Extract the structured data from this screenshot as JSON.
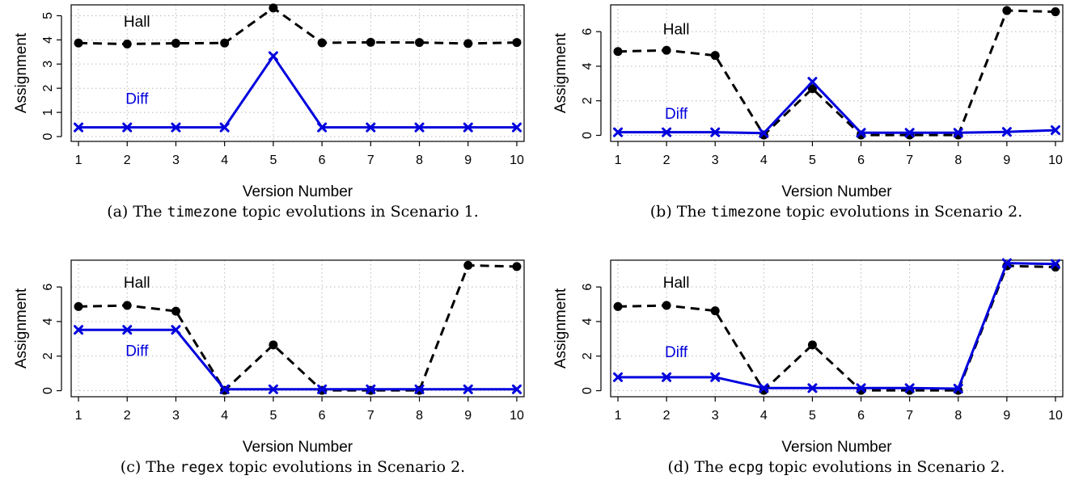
{
  "chart_data": [
    {
      "type": "line",
      "caption": {
        "prefix": "(a) The ",
        "code": "timezone",
        "suffix": " topic evolutions in Scenario 1."
      },
      "xlabel": "Version Number",
      "ylabel": "Assignment",
      "x": [
        1,
        2,
        3,
        4,
        5,
        6,
        7,
        8,
        9,
        10
      ],
      "xlim": [
        0.85,
        10.15
      ],
      "ylim": [
        -0.2,
        5.45
      ],
      "yticks": [
        0,
        1,
        2,
        3,
        4,
        5
      ],
      "grid": true,
      "series": [
        {
          "name": "Hall",
          "color": "#000000",
          "style": "dashed",
          "marker": "circle",
          "values": [
            3.87,
            3.83,
            3.86,
            3.87,
            5.32,
            3.88,
            3.9,
            3.89,
            3.85,
            3.89
          ],
          "label_at": [
            2.2,
            4.55
          ]
        },
        {
          "name": "Diff",
          "color": "#0000dd",
          "style": "solid",
          "marker": "x",
          "values": [
            0.38,
            0.38,
            0.38,
            0.38,
            3.33,
            0.38,
            0.38,
            0.38,
            0.38,
            0.38
          ],
          "label_at": [
            2.2,
            1.35
          ]
        }
      ]
    },
    {
      "type": "line",
      "caption": {
        "prefix": "(b) The ",
        "code": "timezone",
        "suffix": " topic evolutions in Scenario 2."
      },
      "xlabel": "Version Number",
      "ylabel": "Assignment",
      "x": [
        1,
        2,
        3,
        4,
        5,
        6,
        7,
        8,
        9,
        10
      ],
      "xlim": [
        0.85,
        10.15
      ],
      "ylim": [
        -0.35,
        7.55
      ],
      "yticks": [
        0,
        2,
        4,
        6
      ],
      "grid": true,
      "series": [
        {
          "name": "Hall",
          "color": "#000000",
          "style": "dashed",
          "marker": "circle",
          "values": [
            4.85,
            4.92,
            4.62,
            0.02,
            2.7,
            0.02,
            0.02,
            0.02,
            7.22,
            7.15
          ],
          "label_at": [
            2.2,
            5.85
          ]
        },
        {
          "name": "Diff",
          "color": "#0000dd",
          "style": "solid",
          "marker": "x",
          "values": [
            0.18,
            0.18,
            0.18,
            0.13,
            3.1,
            0.15,
            0.15,
            0.15,
            0.2,
            0.3
          ],
          "label_at": [
            2.2,
            0.95
          ]
        }
      ]
    },
    {
      "type": "line",
      "caption": {
        "prefix": "(c) The ",
        "code": "regex",
        "suffix": " topic evolutions in Scenario 2."
      },
      "xlabel": "Version Number",
      "ylabel": "Assignment",
      "x": [
        1,
        2,
        3,
        4,
        5,
        6,
        7,
        8,
        9,
        10
      ],
      "xlim": [
        0.85,
        10.15
      ],
      "ylim": [
        -0.35,
        7.55
      ],
      "yticks": [
        0,
        2,
        4,
        6
      ],
      "grid": true,
      "series": [
        {
          "name": "Hall",
          "color": "#000000",
          "style": "dashed",
          "marker": "circle",
          "values": [
            4.87,
            4.93,
            4.6,
            0.02,
            2.65,
            0.02,
            0.02,
            0.02,
            7.25,
            7.18
          ],
          "label_at": [
            2.2,
            5.95
          ]
        },
        {
          "name": "Diff",
          "color": "#0000dd",
          "style": "solid",
          "marker": "x",
          "values": [
            3.52,
            3.52,
            3.52,
            0.08,
            0.08,
            0.08,
            0.08,
            0.08,
            0.08,
            0.08
          ],
          "label_at": [
            2.2,
            2.0
          ]
        }
      ]
    },
    {
      "type": "line",
      "caption": {
        "prefix": "(d) The ",
        "code": "ecpg",
        "suffix": " topic evolutions in Scenario 2."
      },
      "xlabel": "Version Number",
      "ylabel": "Assignment",
      "x": [
        1,
        2,
        3,
        4,
        5,
        6,
        7,
        8,
        9,
        10
      ],
      "xlim": [
        0.85,
        10.15
      ],
      "ylim": [
        -0.35,
        7.55
      ],
      "yticks": [
        0,
        2,
        4,
        6
      ],
      "grid": true,
      "series": [
        {
          "name": "Hall",
          "color": "#000000",
          "style": "dashed",
          "marker": "circle",
          "values": [
            4.87,
            4.93,
            4.62,
            0.02,
            2.65,
            0.02,
            0.02,
            0.02,
            7.22,
            7.15
          ],
          "label_at": [
            2.2,
            5.95
          ]
        },
        {
          "name": "Diff",
          "color": "#0000dd",
          "style": "solid",
          "marker": "x",
          "values": [
            0.78,
            0.78,
            0.78,
            0.15,
            0.15,
            0.15,
            0.15,
            0.12,
            7.38,
            7.33
          ],
          "label_at": [
            2.2,
            1.95
          ]
        }
      ]
    }
  ]
}
